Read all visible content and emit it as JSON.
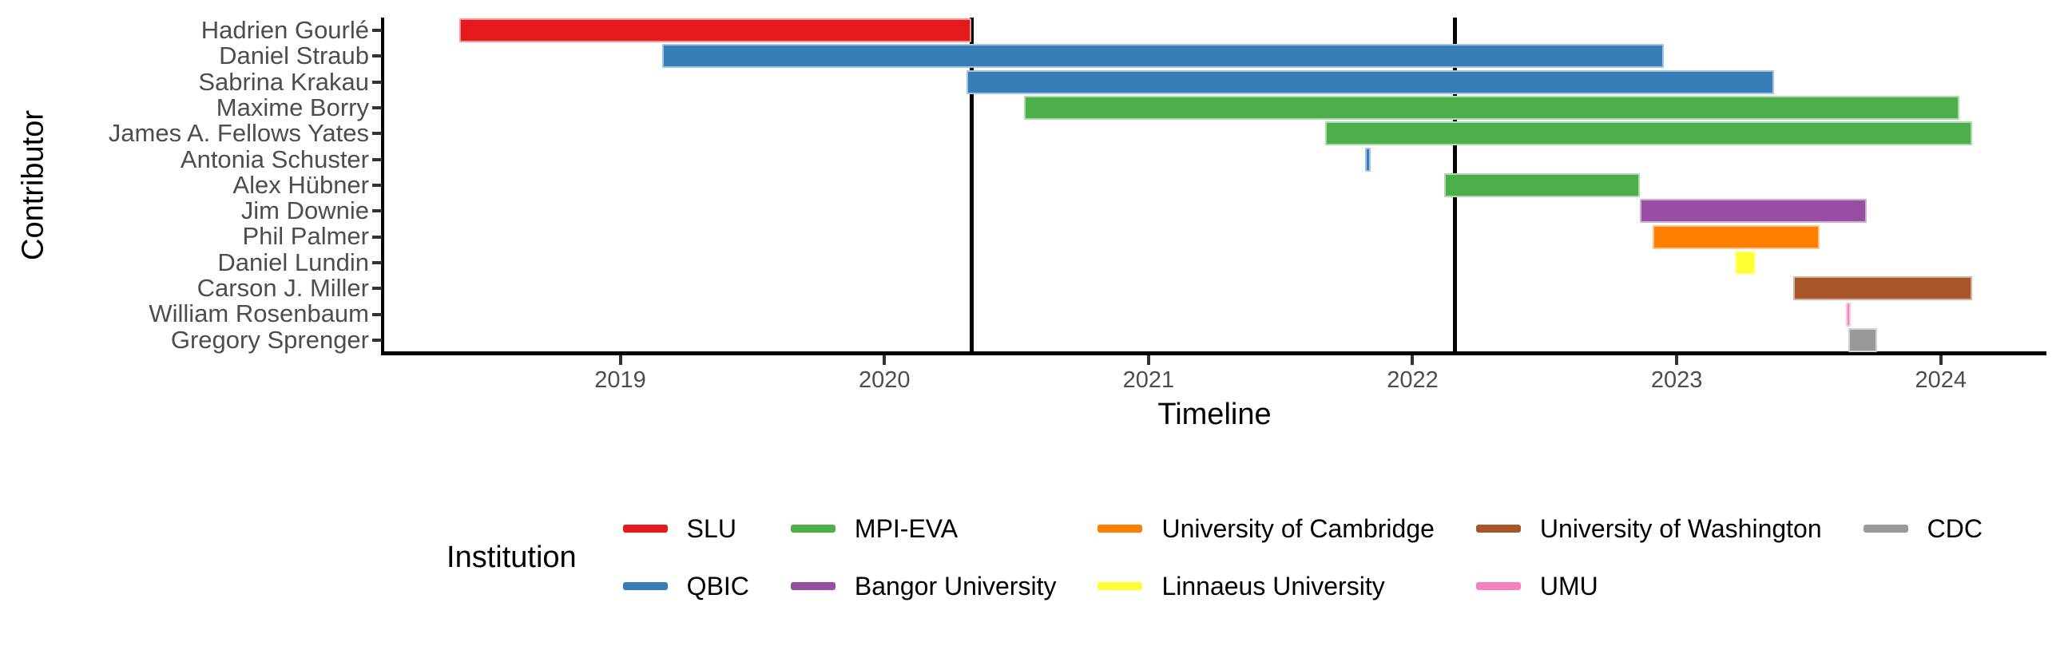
{
  "chart_data": {
    "type": "gantt",
    "title": "",
    "xlabel": "Timeline",
    "ylabel": "Contributor",
    "legend_title": "Institution",
    "x_axis": {
      "range": [
        2018.1,
        2024.4
      ],
      "ticks": [
        "2019",
        "2020",
        "2021",
        "2022",
        "2023",
        "2024"
      ],
      "grid": false
    },
    "y_axis": {
      "categories": [
        "Hadrien Gourlé",
        "Daniel Straub",
        "Sabrina Krakau",
        "Maxime Borry",
        "James A. Fellows Yates",
        "Antonia Schuster",
        "Alex Hübner",
        "Jim Downie",
        "Phil Palmer",
        "Daniel Lundin",
        "Carson J. Miller",
        "William Rosenbaum",
        "Gregory Sprenger"
      ]
    },
    "institutions": [
      {
        "name": "SLU",
        "color": "#E41A1C"
      },
      {
        "name": "QBIC",
        "color": "#377EB8"
      },
      {
        "name": "MPI-EVA",
        "color": "#4DAF4A"
      },
      {
        "name": "Bangor University",
        "color": "#984EA3"
      },
      {
        "name": "University of Cambridge",
        "color": "#FF7F00"
      },
      {
        "name": "Linnaeus University",
        "color": "#FFFF33"
      },
      {
        "name": "University of Washington",
        "color": "#A65628"
      },
      {
        "name": "UMU",
        "color": "#F781BF"
      },
      {
        "name": "CDC",
        "color": "#999999"
      }
    ],
    "legend_columns": [
      [
        "SLU",
        "QBIC"
      ],
      [
        "MPI-EVA",
        "Bangor University"
      ],
      [
        "University of Cambridge",
        "Linnaeus University"
      ],
      [
        "University of Washington",
        "UMU"
      ],
      [
        "CDC"
      ]
    ],
    "legend_position": "bottom",
    "contributors": [
      {
        "name": "Hadrien Gourlé",
        "institution": "SLU",
        "start": 2018.39,
        "end": 2020.33
      },
      {
        "name": "Daniel Straub",
        "institution": "QBIC",
        "start": 2019.16,
        "end": 2022.95
      },
      {
        "name": "Sabrina Krakau",
        "institution": "QBIC",
        "start": 2020.31,
        "end": 2023.37
      },
      {
        "name": "Maxime Borry",
        "institution": "MPI-EVA",
        "start": 2020.53,
        "end": 2024.07
      },
      {
        "name": "James A. Fellows Yates",
        "institution": "MPI-EVA",
        "start": 2021.67,
        "end": 2024.12
      },
      {
        "name": "Antonia Schuster",
        "institution": "QBIC",
        "start": 2021.82,
        "end": 2021.84
      },
      {
        "name": "Alex Hübner",
        "institution": "MPI-EVA",
        "start": 2022.12,
        "end": 2022.86
      },
      {
        "name": "Jim Downie",
        "institution": "Bangor University",
        "start": 2022.86,
        "end": 2023.72
      },
      {
        "name": "Phil Palmer",
        "institution": "University of Cambridge",
        "start": 2022.91,
        "end": 2023.54
      },
      {
        "name": "Daniel Lundin",
        "institution": "Linnaeus University",
        "start": 2023.22,
        "end": 2023.3
      },
      {
        "name": "Carson J. Miller",
        "institution": "University of Washington",
        "start": 2023.44,
        "end": 2024.12
      },
      {
        "name": "William Rosenbaum",
        "institution": "UMU",
        "start": 2023.64,
        "end": 2023.66
      },
      {
        "name": "Gregory Sprenger",
        "institution": "CDC",
        "start": 2023.65,
        "end": 2023.76
      }
    ],
    "event_lines": [
      2020.33,
      2022.16
    ]
  }
}
